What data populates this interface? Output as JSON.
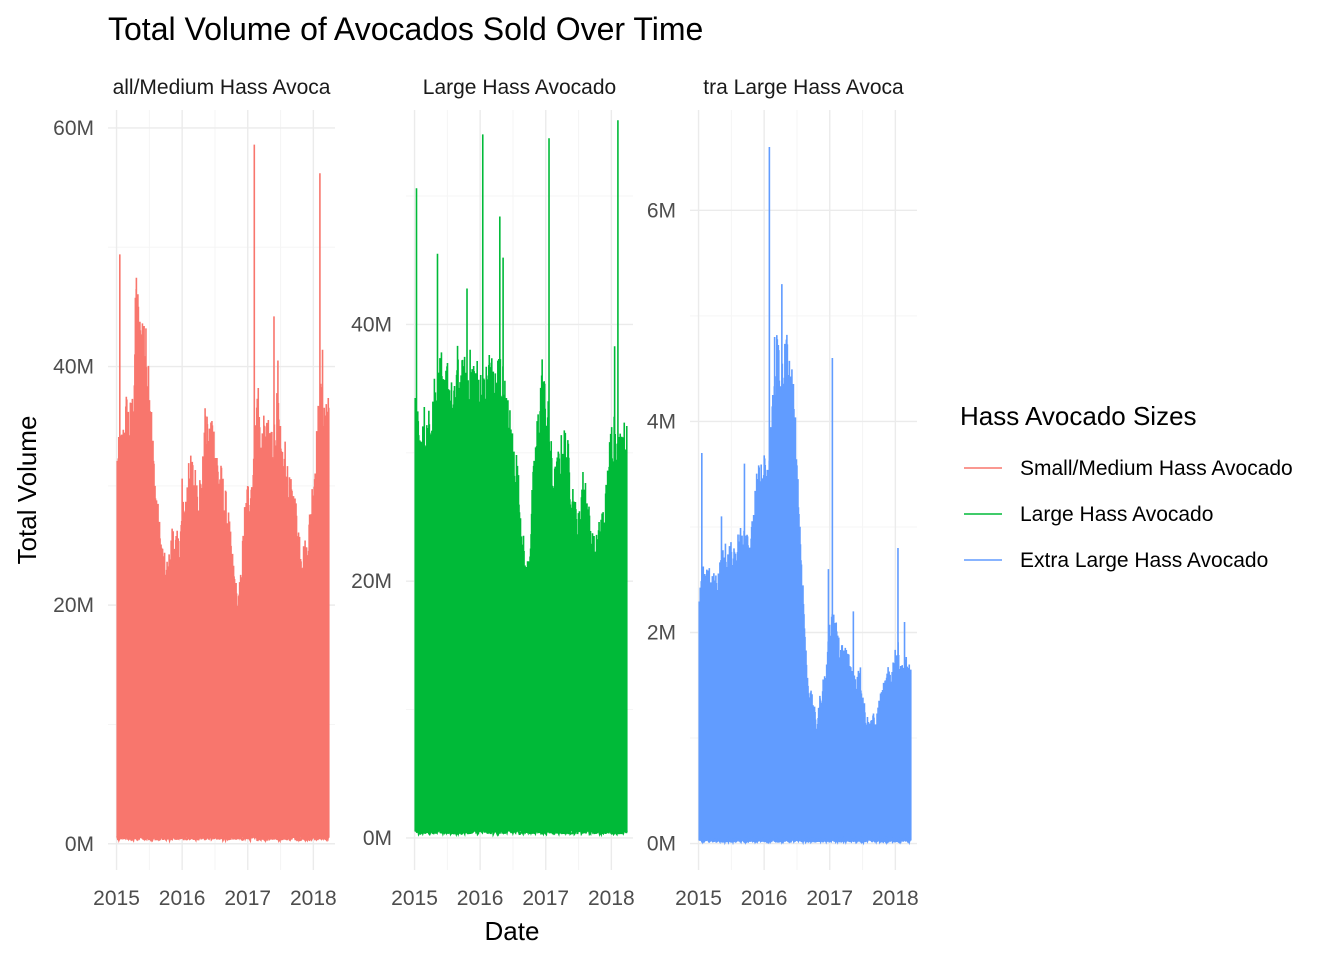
{
  "chart_data": {
    "type": "area",
    "title": "Total Volume of Avocados Sold Over Time",
    "xlabel": "Date",
    "ylabel": "Total Volume",
    "legend": {
      "title": "Hass Avocado Sizes",
      "placement": "right"
    },
    "grid": true,
    "x_ticks": [
      "2015",
      "2016",
      "2017",
      "2018"
    ],
    "x_range": [
      "2015-01-04",
      "2018-03-25"
    ],
    "panels": [
      {
        "strip_label": "Small/Medium Hass Avocado",
        "strip_visible": "all/Medium Hass Avoca",
        "series_name": "Small/Medium Hass Avocado",
        "color": "#F8766D",
        "y_ticks": [
          "0M",
          "20M",
          "40M",
          "60M"
        ],
        "y_tick_values": [
          0,
          20,
          40,
          60
        ],
        "ylim": [
          -2.2,
          61.5
        ],
        "envelope": [
          [
            2015.0,
            31.5
          ],
          [
            2015.1,
            33.5
          ],
          [
            2015.15,
            36
          ],
          [
            2015.2,
            35
          ],
          [
            2015.26,
            36.5
          ],
          [
            2015.3,
            46.5
          ],
          [
            2015.35,
            42
          ],
          [
            2015.4,
            43
          ],
          [
            2015.45,
            41
          ],
          [
            2015.5,
            39
          ],
          [
            2015.55,
            33
          ],
          [
            2015.6,
            29
          ],
          [
            2015.65,
            26
          ],
          [
            2015.7,
            24
          ],
          [
            2015.75,
            22.5
          ],
          [
            2015.8,
            23
          ],
          [
            2015.85,
            25.5
          ],
          [
            2015.9,
            25
          ],
          [
            2015.95,
            24.5
          ],
          [
            2016.0,
            27
          ],
          [
            2016.05,
            28
          ],
          [
            2016.1,
            30.5
          ],
          [
            2016.15,
            31
          ],
          [
            2016.2,
            30
          ],
          [
            2016.3,
            29.5
          ],
          [
            2016.35,
            34
          ],
          [
            2016.4,
            33
          ],
          [
            2016.45,
            35
          ],
          [
            2016.5,
            33
          ],
          [
            2016.55,
            31
          ],
          [
            2016.6,
            30
          ],
          [
            2016.65,
            28.5
          ],
          [
            2016.7,
            27
          ],
          [
            2016.75,
            24
          ],
          [
            2016.8,
            22
          ],
          [
            2016.85,
            19.5
          ],
          [
            2016.9,
            22
          ],
          [
            2016.95,
            27
          ],
          [
            2017.0,
            29
          ],
          [
            2017.1,
            31
          ],
          [
            2017.15,
            38
          ],
          [
            2017.2,
            33
          ],
          [
            2017.25,
            34
          ],
          [
            2017.3,
            33.5
          ],
          [
            2017.35,
            34
          ],
          [
            2017.4,
            33.5
          ],
          [
            2017.45,
            36
          ],
          [
            2017.5,
            33
          ],
          [
            2017.55,
            31
          ],
          [
            2017.6,
            30
          ],
          [
            2017.65,
            29
          ],
          [
            2017.7,
            28.5
          ],
          [
            2017.75,
            27
          ],
          [
            2017.8,
            25
          ],
          [
            2017.85,
            24
          ],
          [
            2017.9,
            24.5
          ],
          [
            2017.95,
            27
          ],
          [
            2018.0,
            30
          ],
          [
            2018.05,
            33
          ],
          [
            2018.1,
            37
          ],
          [
            2018.15,
            36
          ],
          [
            2018.2,
            36.5
          ],
          [
            2018.24,
            35.5
          ]
        ],
        "spikes": [
          [
            2015.05,
            49.4
          ],
          [
            2015.16,
            35.5
          ],
          [
            2015.3,
            46.5
          ],
          [
            2015.42,
            43.4
          ],
          [
            2016.0,
            30.6
          ],
          [
            2016.1,
            31.9
          ],
          [
            2016.35,
            36.5
          ],
          [
            2016.38,
            35.8
          ],
          [
            2017.1,
            58.6
          ],
          [
            2017.4,
            44.2
          ],
          [
            2017.46,
            40.5
          ],
          [
            2017.57,
            33.7
          ],
          [
            2018.1,
            56.2
          ],
          [
            2018.14,
            41.4
          ]
        ],
        "baseline": 0.5
      },
      {
        "strip_label": "Large Hass Avocado",
        "strip_visible": "Large Hass Avocado",
        "series_name": "Large Hass Avocado",
        "color": "#00BA38",
        "y_ticks": [
          "0M",
          "20M",
          "40M"
        ],
        "y_tick_values": [
          0,
          20,
          40
        ],
        "ylim": [
          -2.5,
          56.7
        ],
        "envelope": [
          [
            2015.0,
            33
          ],
          [
            2015.1,
            30
          ],
          [
            2015.15,
            32
          ],
          [
            2015.2,
            31
          ],
          [
            2015.3,
            35
          ],
          [
            2015.35,
            33
          ],
          [
            2015.4,
            37
          ],
          [
            2015.45,
            33
          ],
          [
            2015.5,
            36
          ],
          [
            2015.55,
            34
          ],
          [
            2015.6,
            33
          ],
          [
            2015.65,
            36.5
          ],
          [
            2015.7,
            35
          ],
          [
            2015.8,
            36
          ],
          [
            2015.9,
            36
          ],
          [
            2016.0,
            35
          ],
          [
            2016.05,
            34
          ],
          [
            2016.15,
            37
          ],
          [
            2016.2,
            34.5
          ],
          [
            2016.3,
            36.5
          ],
          [
            2016.35,
            35
          ],
          [
            2016.4,
            33
          ],
          [
            2016.45,
            32
          ],
          [
            2016.5,
            30
          ],
          [
            2016.55,
            29
          ],
          [
            2016.6,
            26
          ],
          [
            2016.65,
            23
          ],
          [
            2016.7,
            20
          ],
          [
            2016.75,
            22
          ],
          [
            2016.8,
            26.5
          ],
          [
            2016.85,
            30
          ],
          [
            2016.9,
            33
          ],
          [
            2016.95,
            36
          ],
          [
            2017.0,
            33
          ],
          [
            2017.05,
            32
          ],
          [
            2017.1,
            28
          ],
          [
            2017.15,
            27.5
          ],
          [
            2017.2,
            29
          ],
          [
            2017.25,
            30
          ],
          [
            2017.3,
            30.5
          ],
          [
            2017.35,
            29
          ],
          [
            2017.4,
            27
          ],
          [
            2017.45,
            25
          ],
          [
            2017.5,
            24
          ],
          [
            2017.55,
            27
          ],
          [
            2017.6,
            27.5
          ],
          [
            2017.65,
            25
          ],
          [
            2017.7,
            23
          ],
          [
            2017.75,
            22
          ],
          [
            2017.8,
            23
          ],
          [
            2017.85,
            24.5
          ],
          [
            2017.9,
            25
          ],
          [
            2017.95,
            28
          ],
          [
            2018.0,
            31
          ],
          [
            2018.05,
            32
          ],
          [
            2018.1,
            29.5
          ],
          [
            2018.15,
            31
          ],
          [
            2018.24,
            30.5
          ]
        ],
        "spikes": [
          [
            2015.03,
            50.6
          ],
          [
            2015.35,
            45.5
          ],
          [
            2016.04,
            54.8
          ],
          [
            2016.3,
            48.4
          ],
          [
            2016.35,
            45.2
          ],
          [
            2017.05,
            54.5
          ],
          [
            2018.1,
            55.9
          ],
          [
            2018.05,
            38.3
          ],
          [
            2015.8,
            42.8
          ]
        ],
        "baseline": 0.5
      },
      {
        "strip_label": "Extra Large Hass Avocado",
        "strip_visible": "tra Large Hass Avoca",
        "series_name": "Extra Large Hass Avocado",
        "color": "#619CFF",
        "y_ticks": [
          "0M",
          "2M",
          "4M",
          "6M"
        ],
        "y_tick_values": [
          0,
          2,
          4,
          6
        ],
        "ylim": [
          -0.25,
          6.95
        ],
        "envelope": [
          [
            2015.0,
            2.2
          ],
          [
            2015.05,
            2.4
          ],
          [
            2015.1,
            2.6
          ],
          [
            2015.2,
            2.4
          ],
          [
            2015.3,
            2.5
          ],
          [
            2015.4,
            2.7
          ],
          [
            2015.5,
            2.7
          ],
          [
            2015.6,
            2.8
          ],
          [
            2015.7,
            3.0
          ],
          [
            2015.8,
            2.8
          ],
          [
            2015.9,
            3.4
          ],
          [
            2016.0,
            3.5
          ],
          [
            2016.05,
            3.4
          ],
          [
            2016.1,
            3.8
          ],
          [
            2016.15,
            4.3
          ],
          [
            2016.2,
            4.7
          ],
          [
            2016.25,
            4.3
          ],
          [
            2016.3,
            4.5
          ],
          [
            2016.35,
            4.6
          ],
          [
            2016.4,
            4.3
          ],
          [
            2016.45,
            4.2
          ],
          [
            2016.5,
            3.6
          ],
          [
            2016.55,
            2.9
          ],
          [
            2016.6,
            2.3
          ],
          [
            2016.65,
            1.6
          ],
          [
            2016.7,
            1.4
          ],
          [
            2016.75,
            1.3
          ],
          [
            2016.8,
            1.1
          ],
          [
            2016.85,
            1.3
          ],
          [
            2016.9,
            1.5
          ],
          [
            2016.95,
            1.6
          ],
          [
            2017.0,
            2.0
          ],
          [
            2017.05,
            2.2
          ],
          [
            2017.1,
            2.0
          ],
          [
            2017.15,
            1.8
          ],
          [
            2017.2,
            1.8
          ],
          [
            2017.25,
            1.8
          ],
          [
            2017.3,
            1.7
          ],
          [
            2017.35,
            1.6
          ],
          [
            2017.4,
            1.5
          ],
          [
            2017.45,
            1.7
          ],
          [
            2017.5,
            1.4
          ],
          [
            2017.55,
            1.2
          ],
          [
            2017.6,
            1.1
          ],
          [
            2017.65,
            1.2
          ],
          [
            2017.7,
            1.1
          ],
          [
            2017.75,
            1.3
          ],
          [
            2017.8,
            1.4
          ],
          [
            2017.85,
            1.5
          ],
          [
            2017.9,
            1.6
          ],
          [
            2017.95,
            1.6
          ],
          [
            2018.0,
            1.8
          ],
          [
            2018.05,
            1.8
          ],
          [
            2018.1,
            1.6
          ],
          [
            2018.15,
            1.7
          ],
          [
            2018.24,
            1.6
          ]
        ],
        "spikes": [
          [
            2015.05,
            3.7
          ],
          [
            2015.35,
            3.1
          ],
          [
            2015.7,
            3.6
          ],
          [
            2016.08,
            6.6
          ],
          [
            2016.27,
            5.3
          ],
          [
            2016.16,
            4.8
          ],
          [
            2016.35,
            4.7
          ],
          [
            2017.04,
            4.6
          ],
          [
            2017.36,
            2.2
          ],
          [
            2018.04,
            2.8
          ],
          [
            2018.14,
            2.1
          ],
          [
            2016.85,
            1.4
          ],
          [
            2016.98,
            2.6
          ]
        ],
        "baseline": 0.03
      }
    ]
  }
}
